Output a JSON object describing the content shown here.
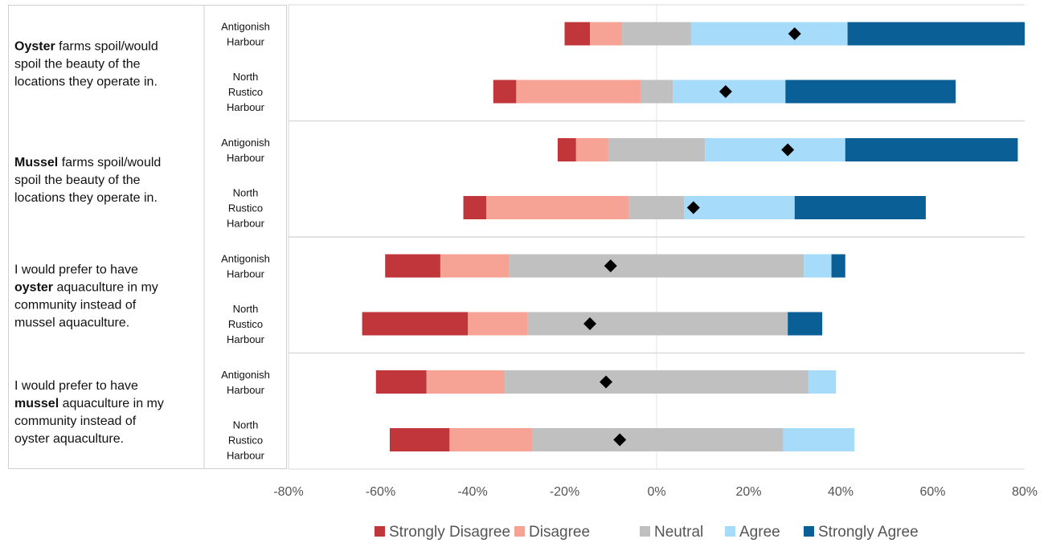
{
  "chart_data": {
    "type": "bar",
    "subtype": "diverging-stacked-horizontal",
    "x_axis": {
      "ticks": [
        "-80%",
        "-60%",
        "-40%",
        "-20%",
        "0%",
        "20%",
        "40%",
        "60%",
        "80%"
      ],
      "range": [
        -80,
        80
      ],
      "unit": "%"
    },
    "legend": {
      "position": "bottom",
      "items": [
        {
          "name": "Strongly Disagree",
          "color": "#c0363a"
        },
        {
          "name": "Disagree",
          "color": "#f6a295"
        },
        {
          "name": "Neutral",
          "color": "#c0c0c0"
        },
        {
          "name": "Agree",
          "color": "#a6dcf9"
        },
        {
          "name": "Strongly Agree",
          "color": "#0b5f97"
        }
      ]
    },
    "mean_marker": "diamond",
    "groups": [
      {
        "statement_lines": [
          [
            {
              "text": "Oyster",
              "bold": true
            },
            {
              "text": " farms spoil/would",
              "bold": false
            }
          ],
          [
            {
              "text": "spoil the beauty of the",
              "bold": false
            }
          ],
          [
            {
              "text": "locations they operate in.",
              "bold": false
            }
          ]
        ],
        "rows": [
          {
            "location_lines": [
              "Antigonish",
              "Harbour"
            ],
            "segments": [
              5.5,
              7,
              15,
              34,
              38.5
            ],
            "start": -20,
            "mean": 30
          },
          {
            "location_lines": [
              "North",
              "Rustico",
              "Harbour"
            ],
            "segments": [
              5,
              27,
              7,
              24.5,
              37
            ],
            "start": -35.5,
            "mean": 15
          }
        ]
      },
      {
        "statement_lines": [
          [
            {
              "text": "Mussel",
              "bold": true
            },
            {
              "text": " farms spoil/would",
              "bold": false
            }
          ],
          [
            {
              "text": "spoil the beauty of the",
              "bold": false
            }
          ],
          [
            {
              "text": "locations they operate in.",
              "bold": false
            }
          ]
        ],
        "rows": [
          {
            "location_lines": [
              "Antigonish",
              "Harbour"
            ],
            "segments": [
              4,
              7,
              21,
              30.5,
              37.5
            ],
            "start": -21.5,
            "mean": 28.5
          },
          {
            "location_lines": [
              "North",
              "Rustico",
              "Harbour"
            ],
            "segments": [
              5,
              31,
              12,
              24,
              28.5
            ],
            "start": -42,
            "mean": 8
          }
        ]
      },
      {
        "statement_lines": [
          [
            {
              "text": "I would prefer to have",
              "bold": false
            }
          ],
          [
            {
              "text": "oyster",
              "bold": true
            },
            {
              "text": " aquaculture in my",
              "bold": false
            }
          ],
          [
            {
              "text": "community instead of",
              "bold": false
            }
          ],
          [
            {
              "text": "mussel aquaculture.",
              "bold": false
            }
          ]
        ],
        "rows": [
          {
            "location_lines": [
              "Antigonish",
              "Harbour"
            ],
            "segments": [
              12,
              15,
              64,
              6,
              3
            ],
            "start": -59,
            "mean": -10
          },
          {
            "location_lines": [
              "North",
              "Rustico",
              "Harbour"
            ],
            "segments": [
              23,
              13,
              56.5,
              0,
              7.5
            ],
            "start": -64,
            "mean": -14.5
          }
        ]
      },
      {
        "statement_lines": [
          [
            {
              "text": "I would prefer to have",
              "bold": false
            }
          ],
          [
            {
              "text": "mussel",
              "bold": true
            },
            {
              "text": " aquaculture in my",
              "bold": false
            }
          ],
          [
            {
              "text": "community instead of",
              "bold": false
            }
          ],
          [
            {
              "text": "oyster aquaculture.",
              "bold": false
            }
          ]
        ],
        "rows": [
          {
            "location_lines": [
              "Antigonish",
              "Harbour"
            ],
            "segments": [
              11,
              17,
              66,
              6,
              0
            ],
            "start": -61,
            "mean": -11
          },
          {
            "location_lines": [
              "North",
              "Rustico",
              "Harbour"
            ],
            "segments": [
              13,
              18,
              54.5,
              15.5,
              0
            ],
            "start": -58,
            "mean": -8
          }
        ]
      }
    ]
  }
}
